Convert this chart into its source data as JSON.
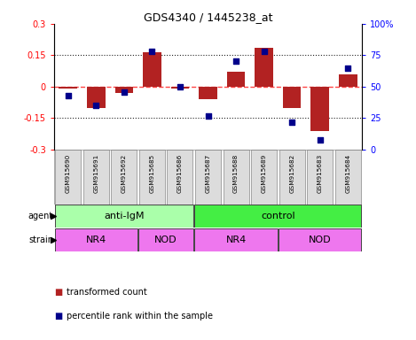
{
  "title": "GDS4340 / 1445238_at",
  "samples": [
    "GSM915690",
    "GSM915691",
    "GSM915692",
    "GSM915685",
    "GSM915686",
    "GSM915687",
    "GSM915688",
    "GSM915689",
    "GSM915682",
    "GSM915683",
    "GSM915684"
  ],
  "bar_values": [
    -0.01,
    -0.1,
    -0.03,
    0.165,
    -0.01,
    -0.06,
    0.07,
    0.185,
    -0.1,
    -0.21,
    0.06
  ],
  "scatter_values": [
    43,
    35,
    46,
    78,
    50,
    27,
    70,
    78,
    22,
    8,
    65
  ],
  "ylim_left": [
    -0.3,
    0.3
  ],
  "ylim_right": [
    0,
    100
  ],
  "yticks_left": [
    -0.3,
    -0.15,
    0.0,
    0.15,
    0.3
  ],
  "yticks_right": [
    0,
    25,
    50,
    75,
    100
  ],
  "ytick_labels_left": [
    "-0.3",
    "-0.15",
    "0",
    "0.15",
    "0.3"
  ],
  "ytick_labels_right": [
    "0",
    "25",
    "50",
    "75",
    "100%"
  ],
  "hlines_dotted": [
    0.15,
    -0.15
  ],
  "hline_dashed": 0.0,
  "bar_color": "#B22222",
  "scatter_color": "#00008B",
  "zero_line_color": "#FF4444",
  "dot_line_color": "#222222",
  "agent_groups": [
    {
      "label": "anti-IgM",
      "start": 0,
      "end": 5,
      "color": "#AAFFAA"
    },
    {
      "label": "control",
      "start": 5,
      "end": 11,
      "color": "#44EE44"
    }
  ],
  "strain_groups": [
    {
      "label": "NR4",
      "start": 0,
      "end": 3,
      "color": "#EE77EE"
    },
    {
      "label": "NOD",
      "start": 3,
      "end": 5,
      "color": "#EE77EE"
    },
    {
      "label": "NR4",
      "start": 5,
      "end": 8,
      "color": "#EE77EE"
    },
    {
      "label": "NOD",
      "start": 8,
      "end": 11,
      "color": "#EE77EE"
    }
  ],
  "legend_items": [
    {
      "label": "transformed count",
      "color": "#B22222"
    },
    {
      "label": "percentile rank within the sample",
      "color": "#00008B"
    }
  ],
  "sample_bg_color": "#DCDCDC",
  "sample_border_color": "#888888"
}
